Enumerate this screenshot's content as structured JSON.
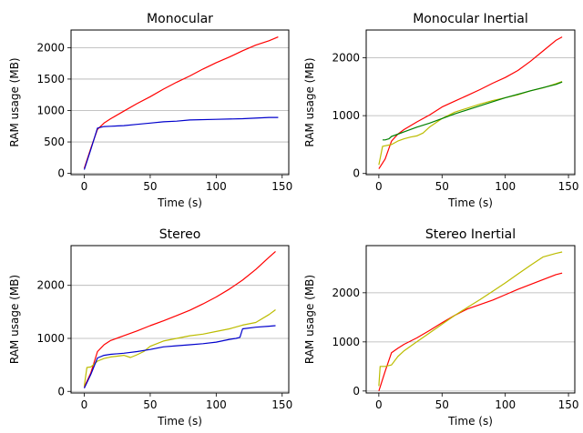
{
  "chart_data": [
    {
      "type": "line",
      "title": "Monocular",
      "xlabel": "Time (s)",
      "ylabel": "RAM usage (MB)",
      "xlim": [
        -10,
        155
      ],
      "ylim": [
        -20,
        2280
      ],
      "xticks": [
        0,
        50,
        100,
        150
      ],
      "yticks": [
        0,
        500,
        1000,
        1500,
        2000
      ],
      "grid": "y",
      "series": [
        {
          "color": "#ff0000",
          "x": [
            0,
            5,
            10,
            15,
            20,
            30,
            40,
            50,
            60,
            70,
            80,
            90,
            100,
            110,
            120,
            130,
            140,
            147
          ],
          "y": [
            80,
            400,
            700,
            800,
            870,
            990,
            1110,
            1220,
            1340,
            1450,
            1550,
            1660,
            1760,
            1850,
            1950,
            2040,
            2110,
            2170
          ]
        },
        {
          "color": "#0000cc",
          "x": [
            0,
            5,
            10,
            15,
            20,
            30,
            40,
            50,
            60,
            70,
            80,
            100,
            120,
            140,
            147
          ],
          "y": [
            60,
            380,
            720,
            745,
            750,
            760,
            780,
            800,
            820,
            830,
            850,
            860,
            870,
            890,
            890
          ]
        }
      ]
    },
    {
      "type": "line",
      "title": "Monocular Inertial",
      "xlabel": "Time (s)",
      "ylabel": "RAM usage (MB)",
      "xlim": [
        -10,
        155
      ],
      "ylim": [
        -20,
        2480
      ],
      "xticks": [
        0,
        50,
        100,
        150
      ],
      "yticks": [
        0,
        1000,
        2000
      ],
      "grid": "y",
      "series": [
        {
          "color": "#ff0000",
          "x": [
            0,
            5,
            10,
            15,
            20,
            30,
            40,
            50,
            60,
            70,
            80,
            90,
            100,
            110,
            120,
            130,
            140,
            145
          ],
          "y": [
            80,
            250,
            560,
            680,
            760,
            890,
            1010,
            1150,
            1250,
            1350,
            1450,
            1560,
            1660,
            1780,
            1940,
            2120,
            2300,
            2360
          ]
        },
        {
          "color": "#bcbc00",
          "x": [
            0,
            3,
            10,
            15,
            20,
            25,
            30,
            35,
            40,
            50,
            60,
            70,
            80,
            90,
            100,
            110,
            120,
            130,
            140,
            145
          ],
          "y": [
            150,
            470,
            500,
            560,
            600,
            630,
            650,
            700,
            800,
            950,
            1060,
            1130,
            1200,
            1260,
            1310,
            1360,
            1430,
            1480,
            1550,
            1590
          ]
        },
        {
          "color": "#008000",
          "x": [
            3,
            5,
            8,
            10,
            15,
            20,
            30,
            40,
            50,
            60,
            80,
            100,
            120,
            140,
            145
          ],
          "y": [
            580,
            580,
            600,
            640,
            680,
            720,
            800,
            870,
            950,
            1030,
            1170,
            1310,
            1430,
            1540,
            1580
          ]
        }
      ]
    },
    {
      "type": "line",
      "title": "Stereo",
      "xlabel": "Time (s)",
      "ylabel": "RAM usage (MB)",
      "xlim": [
        -10,
        155
      ],
      "ylim": [
        -30,
        2750
      ],
      "xticks": [
        0,
        50,
        100,
        150
      ],
      "yticks": [
        0,
        1000,
        2000
      ],
      "grid": "y",
      "series": [
        {
          "color": "#ff0000",
          "x": [
            0,
            5,
            10,
            15,
            20,
            30,
            40,
            50,
            60,
            70,
            80,
            90,
            100,
            110,
            120,
            130,
            140,
            145
          ],
          "y": [
            80,
            350,
            750,
            880,
            960,
            1050,
            1140,
            1240,
            1330,
            1430,
            1530,
            1650,
            1780,
            1930,
            2100,
            2300,
            2530,
            2640
          ]
        },
        {
          "color": "#bcbc00",
          "x": [
            0,
            2,
            5,
            10,
            15,
            20,
            30,
            35,
            40,
            45,
            50,
            60,
            70,
            80,
            90,
            100,
            110,
            120,
            130,
            140,
            145
          ],
          "y": [
            100,
            450,
            460,
            570,
            620,
            650,
            680,
            640,
            690,
            750,
            850,
            950,
            1000,
            1050,
            1080,
            1130,
            1180,
            1250,
            1300,
            1450,
            1540
          ]
        },
        {
          "color": "#0000cc",
          "x": [
            0,
            5,
            10,
            15,
            20,
            30,
            40,
            50,
            60,
            70,
            80,
            90,
            100,
            110,
            115,
            118,
            120,
            130,
            140,
            145
          ],
          "y": [
            60,
            320,
            630,
            680,
            700,
            720,
            750,
            790,
            840,
            860,
            880,
            900,
            930,
            980,
            1000,
            1020,
            1180,
            1210,
            1230,
            1240
          ]
        }
      ]
    },
    {
      "type": "line",
      "title": "Stereo Inertial",
      "xlabel": "Time (s)",
      "ylabel": "RAM usage (MB)",
      "xlim": [
        -10,
        155
      ],
      "ylim": [
        -40,
        2960
      ],
      "xticks": [
        0,
        50,
        100,
        150
      ],
      "yticks": [
        0,
        1000,
        2000
      ],
      "grid": "y",
      "series": [
        {
          "color": "#ff0000",
          "x": [
            0,
            5,
            10,
            15,
            20,
            30,
            40,
            50,
            60,
            70,
            80,
            90,
            100,
            110,
            120,
            130,
            140,
            145
          ],
          "y": [
            0,
            400,
            780,
            870,
            950,
            1080,
            1230,
            1390,
            1540,
            1670,
            1760,
            1850,
            1960,
            2070,
            2170,
            2270,
            2370,
            2400
          ]
        },
        {
          "color": "#bcbc00",
          "x": [
            0,
            1,
            5,
            10,
            15,
            20,
            30,
            40,
            50,
            60,
            70,
            80,
            90,
            100,
            110,
            120,
            130,
            140,
            145
          ],
          "y": [
            100,
            500,
            500,
            530,
            700,
            820,
            1000,
            1180,
            1360,
            1540,
            1700,
            1860,
            2030,
            2200,
            2380,
            2560,
            2730,
            2800,
            2830
          ]
        }
      ]
    }
  ]
}
